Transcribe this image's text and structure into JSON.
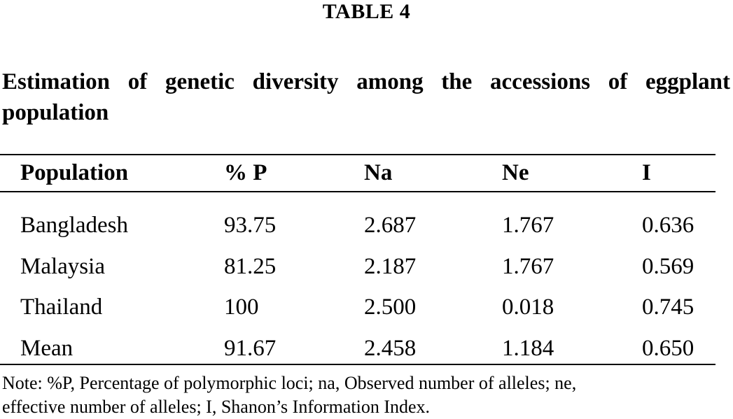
{
  "table_label": "TABLE 4",
  "caption": "Estimation of genetic diversity among the accessions of eggplant population",
  "headers": [
    "Population",
    "% P",
    "Na",
    "Ne",
    "I"
  ],
  "rows": [
    [
      "Bangladesh",
      "93.75",
      "2.687",
      "1.767",
      "0.636"
    ],
    [
      "Malaysia",
      "81.25",
      "2.187",
      "1.767",
      "0.569"
    ],
    [
      "Thailand",
      "100",
      "2.500",
      "0.018",
      "0.745"
    ],
    [
      "Mean",
      "91.67",
      "2.458",
      "1.184",
      "0.650"
    ]
  ],
  "note_line1": "Note: %P, Percentage of polymorphic loci; na, Observed number of alleles; ne,",
  "note_line2": "effective number of alleles; I, Shanon’s Information Index."
}
